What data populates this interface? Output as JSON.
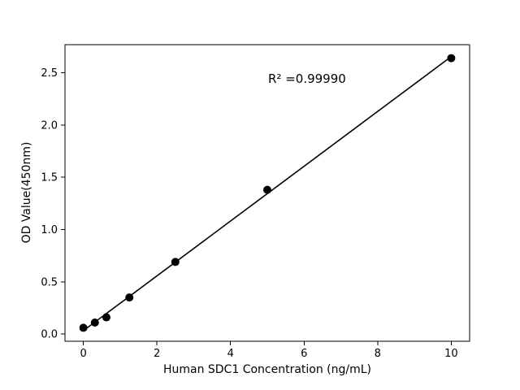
{
  "chart_data": {
    "type": "scatter",
    "title": "",
    "xlabel": "Human SDC1 Concentration (ng/mL)",
    "ylabel": "OD Value(450nm)",
    "annotation": "R² =0.99990",
    "x": [
      0,
      0.3125,
      0.625,
      1.25,
      2.5,
      5,
      10
    ],
    "y": [
      0.06,
      0.11,
      0.16,
      0.35,
      0.69,
      1.38,
      2.64
    ],
    "xlim": [
      -0.5,
      10.5
    ],
    "ylim": [
      -0.069,
      2.769
    ],
    "xticks": [
      0,
      2,
      4,
      6,
      8,
      10
    ],
    "xtick_labels": [
      "0",
      "2",
      "4",
      "6",
      "8",
      "10"
    ],
    "yticks": [
      0.0,
      0.5,
      1.0,
      1.5,
      2.0,
      2.5
    ],
    "ytick_labels": [
      "0.0",
      "0.5",
      "1.0",
      "1.5",
      "2.0",
      "2.5"
    ],
    "fit_line": true,
    "legend": null,
    "grid": false,
    "marker_color": "#000000",
    "line_color": "#000000",
    "background_color": "#ffffff"
  }
}
